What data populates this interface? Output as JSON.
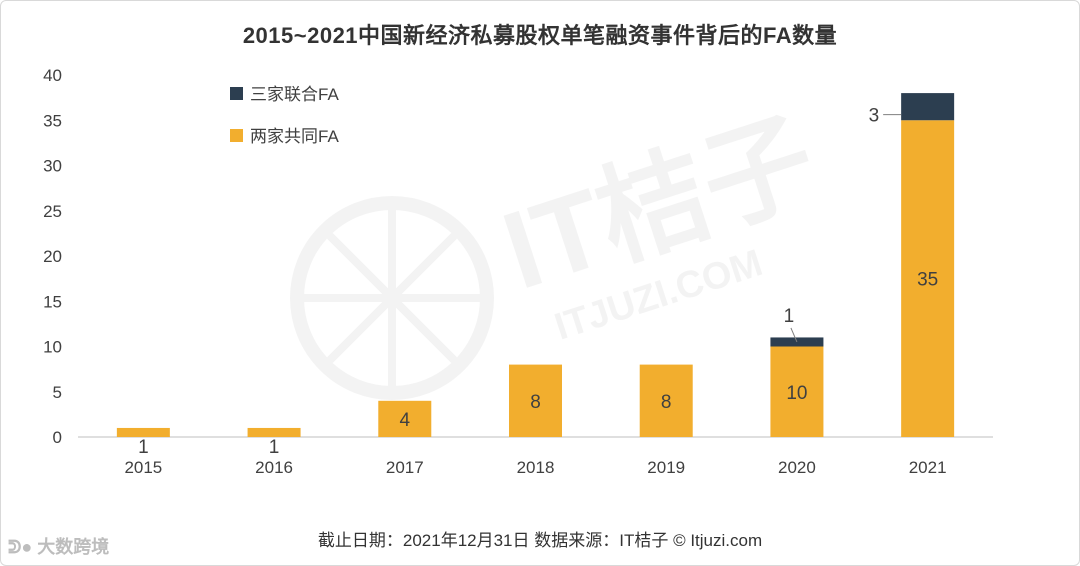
{
  "chart_data": {
    "type": "bar",
    "stacked": true,
    "title": "2015~2021中国新经济私募股权单笔融资事件背后的FA数量",
    "categories": [
      "2015",
      "2016",
      "2017",
      "2018",
      "2019",
      "2020",
      "2021"
    ],
    "series": [
      {
        "name": "两家共同FA",
        "color": "#F2AE2E",
        "values": [
          1,
          1,
          4,
          8,
          8,
          10,
          35
        ]
      },
      {
        "name": "三家联合FA",
        "color": "#2C3E50",
        "values": [
          0,
          0,
          0,
          0,
          0,
          1,
          3
        ]
      }
    ],
    "ylim": [
      0,
      40
    ],
    "yticks": [
      0,
      5,
      10,
      15,
      20,
      25,
      30,
      35,
      40
    ],
    "grid": false,
    "legend_position": "top-left"
  },
  "footer": {
    "source": "截止日期：2021年12月31日    数据来源：IT桔子 © Itjuzi.com"
  },
  "watermark": {
    "center_text": "IT桔子",
    "center_url": "ITJUZI.COM",
    "corner_text": "大数跨境"
  }
}
